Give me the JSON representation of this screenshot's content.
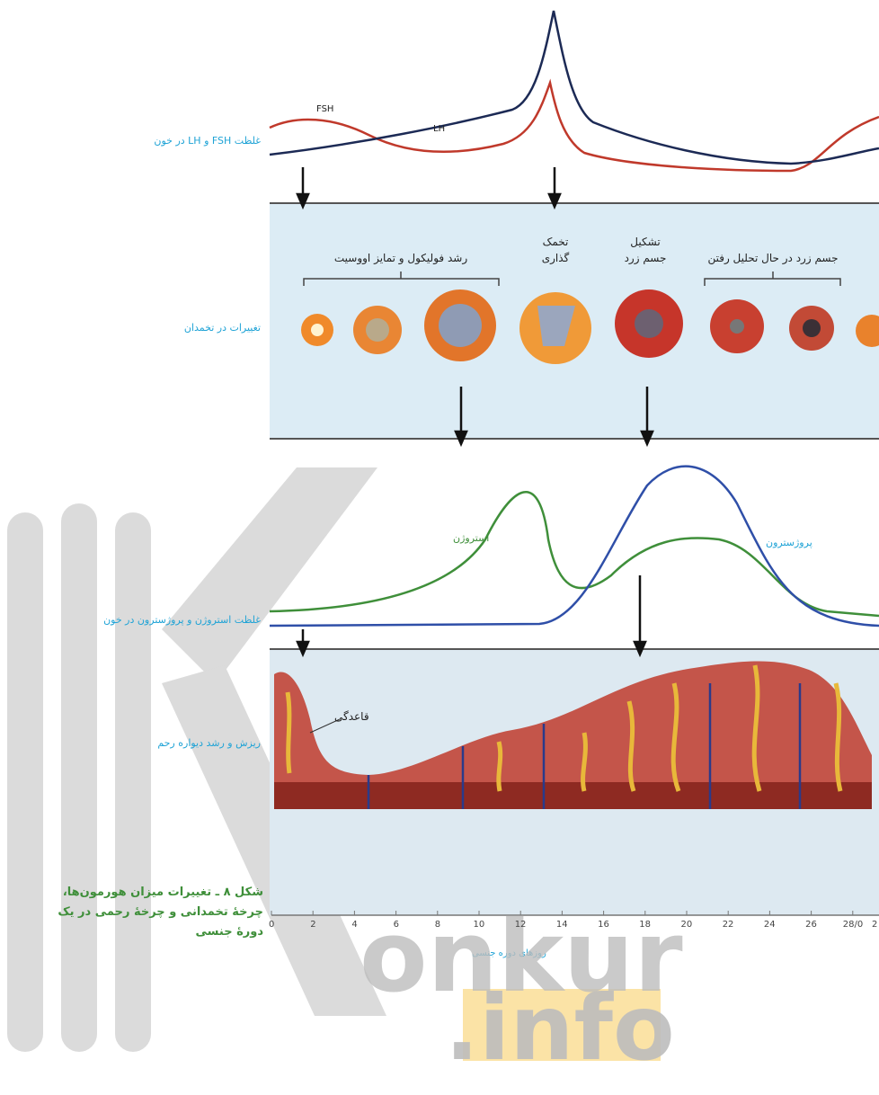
{
  "hormones_pituitary": {
    "label": "غلظت FSH و LH در خون",
    "fsh": "FSH",
    "lh": "LH"
  },
  "ovary": {
    "label": "تغییرات در تخمدان",
    "follicle_growth": "رشد فولیکول و تمایز اووسیت",
    "ovulation": [
      "تخمک",
      "گذاری"
    ],
    "corpus_luteum": [
      "تشکیل",
      "جسم زرد"
    ],
    "corpus_regress": "جسم زرد در حال تحلیل رفتن"
  },
  "hormones_ovary": {
    "label": "غلظت استروژن و پروژسترون در خون",
    "estrogen": "استروژن",
    "progesterone": "پروژسترون"
  },
  "uterus": {
    "label": "ریزش و رشد دیواره رحم",
    "menstruation": "قاعدگی"
  },
  "caption": [
    "شکل ۸ ـ تغییرات میزان هورمون‌ها،",
    "چرخهٔ تخمدانی و چرخهٔ رحمی در یک",
    "دورهٔ جنسی"
  ],
  "day_axis": {
    "title": "روزهای دوره جنسی",
    "ticks": [
      0,
      2,
      4,
      6,
      8,
      10,
      12,
      14,
      16,
      18,
      20,
      22,
      24,
      26,
      {
        "value": 28,
        "label": "28/0"
      },
      {
        "value": 30,
        "label": "2"
      }
    ]
  },
  "watermark": {
    "brand": "onkur",
    "domain": ".info"
  }
}
